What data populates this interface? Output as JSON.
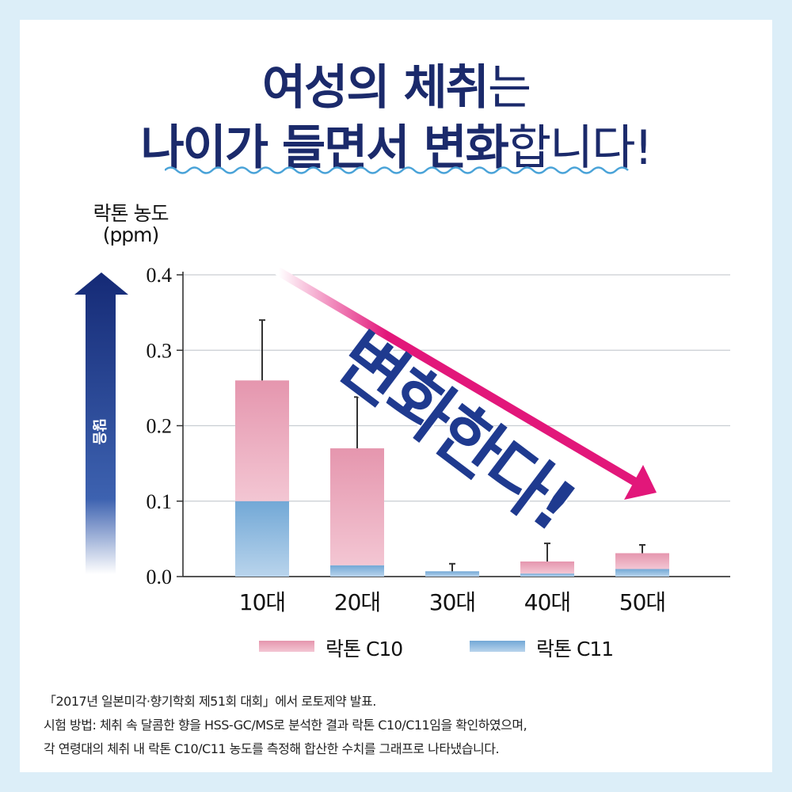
{
  "headline": {
    "line1_bold": "여성의 체취",
    "line1_rest": "는",
    "line2_bold": "나이가 들면서 변화",
    "line2_rest": "합니다!"
  },
  "y_axis_label_line1": "락톤 농도",
  "y_axis_label_line2": "(ppm)",
  "arrow_label": "많음",
  "annotation": "변화한다!",
  "colors": {
    "title": "#1b2a6b",
    "c10": "#e79cb2",
    "c11": "#7aaed8",
    "trend_arrow": "#e2177a",
    "side_arrow": "#1a2f7a"
  },
  "chart_data": {
    "type": "bar",
    "stacked": true,
    "categories": [
      "10대",
      "20대",
      "30대",
      "40대",
      "50대"
    ],
    "series": [
      {
        "name": "락톤 C11",
        "values": [
          0.1,
          0.015,
          0.007,
          0.004,
          0.01
        ]
      },
      {
        "name": "락톤 C10",
        "values": [
          0.16,
          0.155,
          0.0,
          0.016,
          0.021
        ]
      }
    ],
    "totals": [
      0.26,
      0.17,
      0.007,
      0.02,
      0.031
    ],
    "error_bar_tops": [
      0.34,
      0.238,
      0.017,
      0.044,
      0.042
    ],
    "ylim": [
      0,
      0.4
    ],
    "yticks": [
      "0.0",
      "0.1",
      "0.2",
      "0.3",
      "0.4"
    ],
    "grid": true,
    "legend": "bottom"
  },
  "footnotes": [
    "「2017년 일본미각·향기학회 제51회 대회」에서 로토제약 발표.",
    "시험 방법: 체취 속 달콤한 향을 HSS-GC/MS로 분석한 결과 락톤 C10/C11임을 확인하였으며,",
    "각 연령대의 체취 내 락톤 C10/C11 농도를 측정해 합산한 수치를 그래프로 나타냈습니다."
  ]
}
